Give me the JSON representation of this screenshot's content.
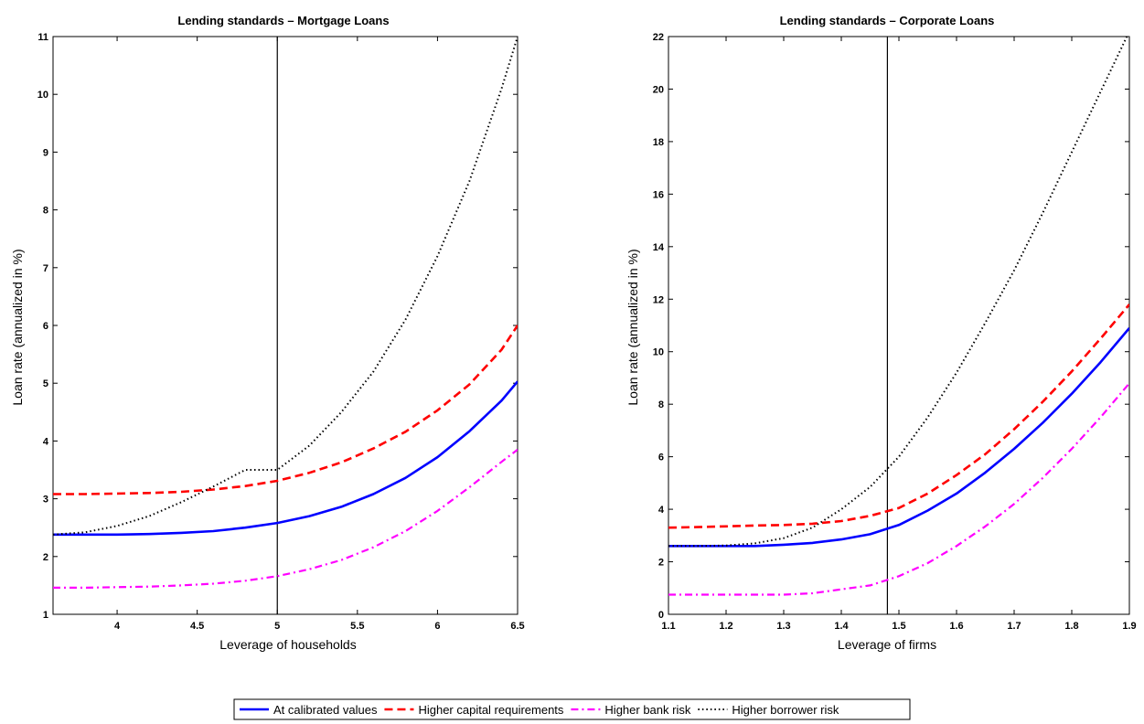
{
  "legend": {
    "placement": "bottom-center",
    "entries": [
      {
        "label": "At calibrated values",
        "color": "#0000ff",
        "style": "solid"
      },
      {
        "label": "Higher capital requirements",
        "color": "#ff0000",
        "style": "dashed"
      },
      {
        "label": "Higher bank risk",
        "color": "#ff00ff",
        "style": "dashdot"
      },
      {
        "label": "Higher borrower risk",
        "color": "#000000",
        "style": "dotted"
      }
    ]
  },
  "chart_data": [
    {
      "type": "line",
      "title": "Lending standards – Mortgage Loans",
      "xlabel": "Leverage of households",
      "ylabel": "Loan rate (annualized in %)",
      "xlim": [
        3.6,
        6.5
      ],
      "ylim": [
        1,
        11
      ],
      "xticks": [
        4,
        4.5,
        5,
        5.5,
        6,
        6.5
      ],
      "xtick_labels": [
        "4",
        "4.5",
        "5",
        "5.5",
        "6",
        "6.5"
      ],
      "yticks": [
        1,
        2,
        3,
        4,
        5,
        6,
        7,
        8,
        9,
        10,
        11
      ],
      "ytick_labels": [
        "1",
        "2",
        "3",
        "4",
        "5",
        "6",
        "7",
        "8",
        "9",
        "10",
        "11"
      ],
      "vline": 5,
      "grid": false,
      "x": [
        3.6,
        3.8,
        4.0,
        4.2,
        4.4,
        4.6,
        4.8,
        5.0,
        5.2,
        5.4,
        5.6,
        5.8,
        6.0,
        6.2,
        6.4,
        6.5
      ],
      "series": [
        {
          "name": "At calibrated values",
          "color": "#0000ff",
          "style": "solid",
          "values": [
            2.38,
            2.38,
            2.38,
            2.39,
            2.41,
            2.44,
            2.5,
            2.58,
            2.7,
            2.86,
            3.08,
            3.36,
            3.72,
            4.17,
            4.7,
            5.03
          ]
        },
        {
          "name": "Higher capital requirements",
          "color": "#ff0000",
          "style": "dashed",
          "values": [
            3.08,
            3.08,
            3.09,
            3.1,
            3.12,
            3.16,
            3.22,
            3.31,
            3.45,
            3.63,
            3.87,
            4.16,
            4.53,
            4.98,
            5.58,
            6.0
          ]
        },
        {
          "name": "Higher bank risk",
          "color": "#ff00ff",
          "style": "dashdot",
          "values": [
            1.46,
            1.46,
            1.47,
            1.48,
            1.5,
            1.53,
            1.58,
            1.66,
            1.78,
            1.94,
            2.16,
            2.44,
            2.79,
            3.2,
            3.64,
            3.85
          ]
        },
        {
          "name": "Higher borrower risk",
          "color": "#000000",
          "style": "dotted",
          "values": [
            2.38,
            2.42,
            2.53,
            2.7,
            2.94,
            3.21,
            3.5,
            3.5,
            3.92,
            4.5,
            5.2,
            6.1,
            7.2,
            8.5,
            10.1,
            11.0
          ]
        }
      ]
    },
    {
      "type": "line",
      "title": "Lending standards – Corporate Loans",
      "xlabel": "Leverage of firms",
      "ylabel": "Loan rate (annualized in %)",
      "xlim": [
        1.1,
        1.9
      ],
      "ylim": [
        0,
        22
      ],
      "xticks": [
        1.1,
        1.2,
        1.3,
        1.4,
        1.5,
        1.6,
        1.7,
        1.8,
        1.9
      ],
      "xtick_labels": [
        "1.1",
        "1.2",
        "1.3",
        "1.4",
        "1.5",
        "1.6",
        "1.7",
        "1.8",
        "1.9"
      ],
      "yticks": [
        0,
        2,
        4,
        6,
        8,
        10,
        12,
        14,
        16,
        18,
        20,
        22
      ],
      "ytick_labels": [
        "0",
        "2",
        "4",
        "6",
        "8",
        "10",
        "12",
        "14",
        "16",
        "18",
        "20",
        "22"
      ],
      "vline": 1.48,
      "grid": false,
      "x": [
        1.1,
        1.15,
        1.2,
        1.25,
        1.3,
        1.35,
        1.4,
        1.45,
        1.5,
        1.55,
        1.6,
        1.65,
        1.7,
        1.75,
        1.8,
        1.85,
        1.9
      ],
      "series": [
        {
          "name": "At calibrated values",
          "color": "#0000ff",
          "style": "solid",
          "values": [
            2.6,
            2.6,
            2.6,
            2.6,
            2.65,
            2.72,
            2.85,
            3.05,
            3.4,
            3.95,
            4.6,
            5.4,
            6.3,
            7.3,
            8.4,
            9.6,
            10.9
          ]
        },
        {
          "name": "Higher capital requirements",
          "color": "#ff0000",
          "style": "dashed",
          "values": [
            3.3,
            3.32,
            3.35,
            3.38,
            3.4,
            3.45,
            3.55,
            3.75,
            4.05,
            4.6,
            5.3,
            6.1,
            7.05,
            8.1,
            9.25,
            10.5,
            11.8
          ]
        },
        {
          "name": "Higher bank risk",
          "color": "#ff00ff",
          "style": "dashdot",
          "values": [
            0.75,
            0.75,
            0.75,
            0.75,
            0.75,
            0.8,
            0.95,
            1.1,
            1.45,
            1.95,
            2.6,
            3.35,
            4.2,
            5.2,
            6.3,
            7.5,
            8.8
          ]
        },
        {
          "name": "Higher borrower risk",
          "color": "#000000",
          "style": "dotted",
          "values": [
            2.6,
            2.6,
            2.62,
            2.7,
            2.9,
            3.3,
            4.0,
            4.85,
            6.0,
            7.5,
            9.2,
            11.1,
            13.1,
            15.3,
            17.6,
            19.9,
            22.2
          ]
        }
      ]
    }
  ]
}
